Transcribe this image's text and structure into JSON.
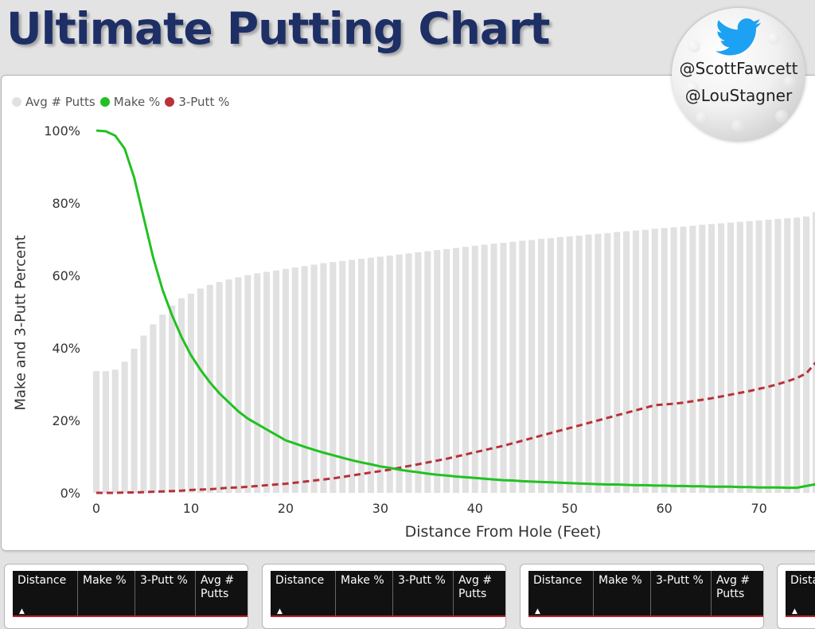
{
  "title": "Ultimate Putting Chart",
  "badge": {
    "handle1": "@ScottFawcett",
    "handle2": "@LouStagner",
    "icon": "twitter-bird-icon"
  },
  "colors": {
    "avg_putts": "#e1e1e1",
    "make_pct": "#22c122",
    "three_putt_pct": "#b9313a",
    "title": "#1e2f66"
  },
  "chart_data": {
    "type": "line",
    "legend": [
      "Avg # Putts",
      "Make %",
      "3-Putt %"
    ],
    "legend_position": "top-left",
    "xlabel": "Distance From Hole (Feet)",
    "ylabel": "Make and 3-Putt Percent",
    "x_ticks": [
      "0",
      "10",
      "20",
      "30",
      "40",
      "50",
      "60",
      "70"
    ],
    "y_ticks": [
      "0%",
      "20%",
      "40%",
      "60%",
      "80%",
      "100%"
    ],
    "xlim": [
      0,
      76
    ],
    "ylim": [
      0,
      100
    ],
    "grid": false,
    "x": [
      0,
      1,
      2,
      3,
      4,
      5,
      6,
      7,
      8,
      9,
      10,
      11,
      12,
      13,
      14,
      15,
      16,
      17,
      18,
      19,
      20,
      21,
      22,
      23,
      24,
      25,
      26,
      27,
      28,
      29,
      30,
      31,
      32,
      33,
      34,
      35,
      36,
      37,
      38,
      39,
      40,
      41,
      42,
      43,
      44,
      45,
      46,
      47,
      48,
      49,
      50,
      51,
      52,
      53,
      54,
      55,
      56,
      57,
      58,
      59,
      60,
      61,
      62,
      63,
      64,
      65,
      66,
      67,
      68,
      69,
      70,
      71,
      72,
      73,
      74,
      75,
      76
    ],
    "series": [
      {
        "name": "Avg # Putts",
        "type": "bar",
        "values": [
          33.6,
          33.6,
          34.0,
          36.2,
          39.8,
          43.4,
          46.5,
          49.2,
          51.7,
          53.7,
          55.0,
          56.4,
          57.4,
          58.2,
          58.9,
          59.5,
          60.1,
          60.6,
          61.0,
          61.4,
          61.8,
          62.2,
          62.6,
          63.0,
          63.4,
          63.7,
          64.0,
          64.3,
          64.6,
          64.9,
          65.2,
          65.5,
          65.8,
          66.1,
          66.4,
          66.7,
          67.0,
          67.3,
          67.6,
          67.9,
          68.2,
          68.5,
          68.8,
          69.0,
          69.3,
          69.6,
          69.8,
          70.1,
          70.3,
          70.6,
          70.8,
          71.0,
          71.3,
          71.5,
          71.7,
          72.0,
          72.2,
          72.4,
          72.6,
          72.9,
          73.1,
          73.3,
          73.5,
          73.7,
          74.0,
          74.2,
          74.4,
          74.6,
          74.8,
          75.0,
          75.2,
          75.4,
          75.6,
          75.8,
          76.0,
          76.3,
          77.5
        ]
      },
      {
        "name": "Make %",
        "type": "line",
        "values": [
          100,
          99.8,
          98.6,
          95,
          87,
          76,
          65,
          56,
          49,
          43,
          38,
          34,
          30.5,
          27.5,
          25,
          22.5,
          20.5,
          19,
          17.5,
          16,
          14.5,
          13.6,
          12.7,
          11.9,
          11.1,
          10.4,
          9.7,
          9.0,
          8.4,
          7.9,
          7.3,
          6.9,
          6.4,
          6.0,
          5.7,
          5.3,
          5.0,
          4.8,
          4.5,
          4.3,
          4.1,
          3.9,
          3.7,
          3.5,
          3.4,
          3.2,
          3.1,
          3.0,
          2.9,
          2.8,
          2.7,
          2.6,
          2.5,
          2.4,
          2.3,
          2.3,
          2.2,
          2.1,
          2.1,
          2.0,
          2.0,
          1.9,
          1.9,
          1.8,
          1.8,
          1.7,
          1.7,
          1.7,
          1.6,
          1.6,
          1.5,
          1.5,
          1.5,
          1.4,
          1.4,
          1.9,
          2.4
        ]
      },
      {
        "name": "3-Putt %",
        "type": "line",
        "values": [
          0,
          0,
          0,
          0.1,
          0.1,
          0.2,
          0.3,
          0.4,
          0.5,
          0.6,
          0.8,
          0.9,
          1.0,
          1.2,
          1.4,
          1.5,
          1.7,
          1.9,
          2.1,
          2.3,
          2.5,
          2.8,
          3.1,
          3.4,
          3.7,
          4.0,
          4.4,
          4.8,
          5.2,
          5.6,
          6.0,
          6.4,
          6.9,
          7.4,
          7.9,
          8.4,
          8.9,
          9.4,
          10.0,
          10.6,
          11.2,
          11.8,
          12.4,
          13.0,
          13.7,
          14.4,
          15.1,
          15.8,
          16.5,
          17.2,
          17.9,
          18.6,
          19.3,
          20.0,
          20.7,
          21.4,
          22.1,
          22.8,
          23.5,
          24.2,
          24.4,
          24.6,
          24.9,
          25.3,
          25.7,
          26.1,
          26.6,
          27.1,
          27.6,
          28.1,
          28.7,
          29.3,
          30.0,
          30.8,
          31.7,
          33.0,
          36.0
        ]
      }
    ]
  },
  "tables": [
    {
      "headers": [
        "Distance",
        "Make %",
        "3-Putt %",
        "Avg # Putts"
      ]
    },
    {
      "headers": [
        "Distance",
        "Make %",
        "3-Putt %",
        "Avg # Putts"
      ]
    },
    {
      "headers": [
        "Distance",
        "Make %",
        "3-Putt %",
        "Avg # Putts"
      ]
    },
    {
      "headers": [
        "Distance"
      ]
    }
  ]
}
